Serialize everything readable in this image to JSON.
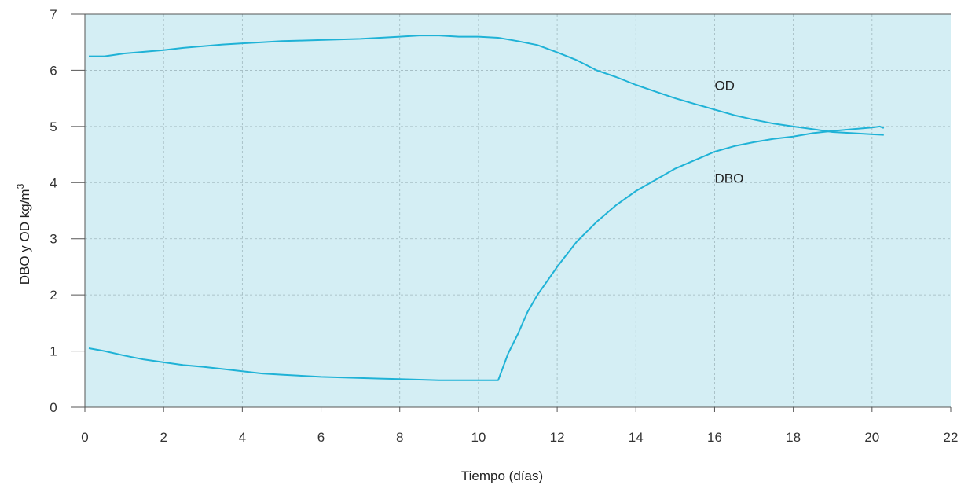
{
  "chart_data": {
    "type": "line",
    "xlabel": "Tiempo (días)",
    "ylabel": "DBO y OD kg/m",
    "ylabel_sup": "3",
    "xlim": [
      0,
      22
    ],
    "ylim": [
      0,
      7
    ],
    "x_ticks": [
      0,
      2,
      4,
      6,
      8,
      10,
      12,
      14,
      16,
      18,
      20,
      22
    ],
    "y_ticks": [
      0,
      1,
      2,
      3,
      4,
      5,
      6,
      7
    ],
    "grid": true,
    "colors": {
      "plot_bg": "#d4eef4",
      "line": "#1fb2d6",
      "grid": "#9fb8be",
      "axis": "#555555"
    },
    "series": [
      {
        "name": "OD",
        "label_pos": [
          16.0,
          5.65
        ],
        "x": [
          0.1,
          0.5,
          1.0,
          1.5,
          2.0,
          2.5,
          3.0,
          3.5,
          4.0,
          4.5,
          5.0,
          5.5,
          6.0,
          6.5,
          7.0,
          7.5,
          8.0,
          8.5,
          9.0,
          9.5,
          10.0,
          10.5,
          11.0,
          11.5,
          12.0,
          12.5,
          13.0,
          13.5,
          14.0,
          14.5,
          15.0,
          15.5,
          16.0,
          16.5,
          17.0,
          17.5,
          18.0,
          18.5,
          19.0,
          19.5,
          20.0,
          20.3
        ],
        "y": [
          6.25,
          6.25,
          6.3,
          6.33,
          6.36,
          6.4,
          6.43,
          6.46,
          6.48,
          6.5,
          6.52,
          6.53,
          6.54,
          6.55,
          6.56,
          6.58,
          6.6,
          6.62,
          6.62,
          6.6,
          6.6,
          6.58,
          6.52,
          6.45,
          6.32,
          6.18,
          6.0,
          5.88,
          5.74,
          5.62,
          5.5,
          5.4,
          5.3,
          5.2,
          5.12,
          5.05,
          5.0,
          4.95,
          4.9,
          4.88,
          4.86,
          4.85
        ]
      },
      {
        "name": "DBO",
        "label_pos": [
          16.0,
          4.0
        ],
        "x": [
          0.1,
          0.5,
          1.0,
          1.5,
          2.0,
          2.5,
          3.0,
          3.5,
          4.0,
          4.5,
          5.0,
          5.5,
          6.0,
          6.5,
          7.0,
          7.5,
          8.0,
          8.5,
          9.0,
          9.5,
          10.0,
          10.5,
          10.75,
          11.0,
          11.25,
          11.5,
          11.75,
          12.0,
          12.5,
          13.0,
          13.5,
          14.0,
          14.5,
          15.0,
          15.5,
          16.0,
          16.5,
          17.0,
          17.5,
          18.0,
          18.5,
          19.0,
          19.5,
          20.0,
          20.2,
          20.3
        ],
        "y": [
          1.05,
          1.0,
          0.92,
          0.85,
          0.8,
          0.75,
          0.72,
          0.68,
          0.64,
          0.6,
          0.58,
          0.56,
          0.54,
          0.53,
          0.52,
          0.51,
          0.5,
          0.49,
          0.48,
          0.48,
          0.48,
          0.48,
          0.95,
          1.3,
          1.7,
          2.0,
          2.25,
          2.5,
          2.95,
          3.3,
          3.6,
          3.85,
          4.05,
          4.25,
          4.4,
          4.55,
          4.65,
          4.72,
          4.78,
          4.82,
          4.88,
          4.92,
          4.95,
          4.98,
          5.0,
          4.97
        ]
      }
    ]
  }
}
